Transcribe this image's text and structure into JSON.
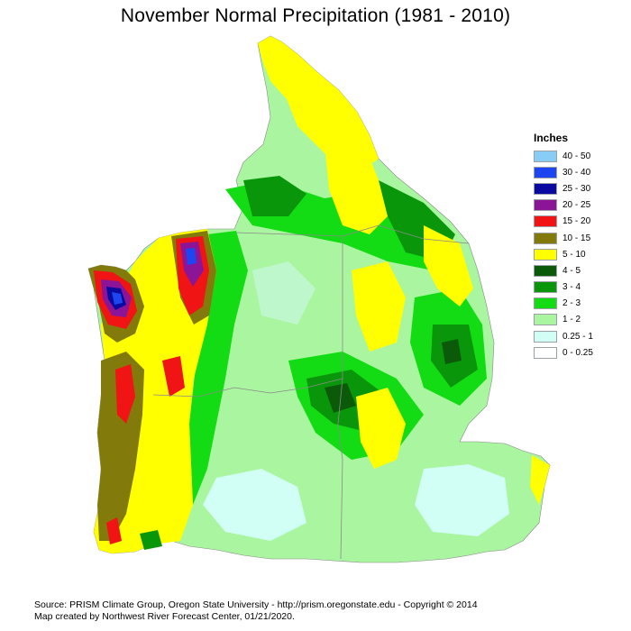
{
  "title": "November Normal Precipitation (1981 - 2010)",
  "legend": {
    "title": "Inches",
    "items": [
      {
        "label": "40 - 50",
        "color": "#87cdf5"
      },
      {
        "label": "30 - 40",
        "color": "#1e46f0"
      },
      {
        "label": "25 - 30",
        "color": "#0a0aa0"
      },
      {
        "label": "20 - 25",
        "color": "#8c1496"
      },
      {
        "label": "15 - 20",
        "color": "#f01414"
      },
      {
        "label": "10 - 15",
        "color": "#827a0a"
      },
      {
        "label": "5 - 10",
        "color": "#ffff00"
      },
      {
        "label": "4 - 5",
        "color": "#0a5a0a"
      },
      {
        "label": "3 - 4",
        "color": "#0a960a"
      },
      {
        "label": "2 - 3",
        "color": "#14dc14"
      },
      {
        "label": "1 - 2",
        "color": "#aaf5a0"
      },
      {
        "label": "0.25 - 1",
        "color": "#d2fff5"
      },
      {
        "label": "0 - 0.25",
        "color": "#ffffff"
      }
    ]
  },
  "footer": {
    "line1": "Source: PRISM Climate Group, Oregon State University - http://prism.oregonstate.edu - Copyright © 2014",
    "line2": "Map created by Northwest River Forecast Center, 01/21/2020."
  }
}
